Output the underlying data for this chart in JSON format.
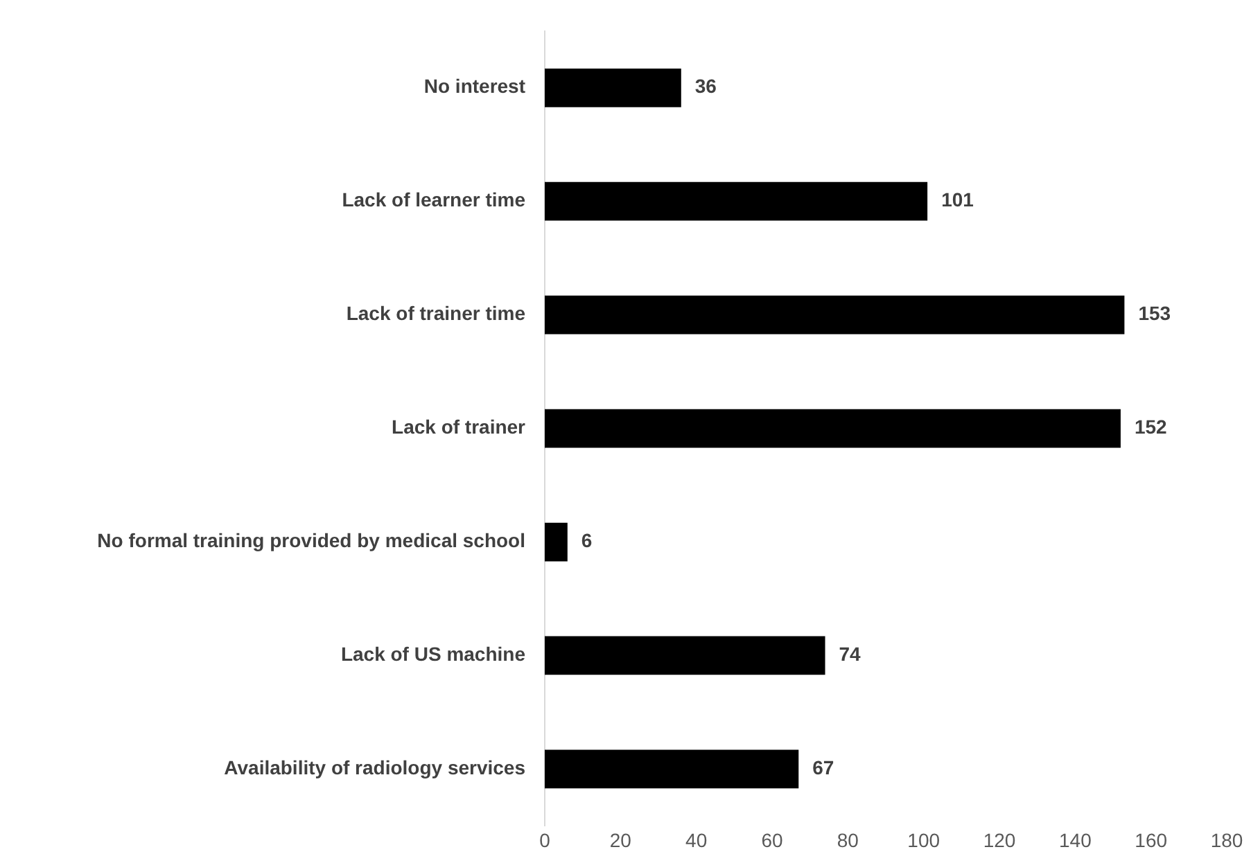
{
  "chart_data": {
    "type": "bar",
    "orientation": "horizontal",
    "categories": [
      "No interest",
      "Lack of learner time",
      "Lack of trainer time",
      "Lack of trainer",
      "No formal training provided by medical school",
      "Lack of US machine",
      "Availability of radiology services"
    ],
    "values": [
      36,
      101,
      153,
      152,
      6,
      74,
      67
    ],
    "color": "#000000",
    "xlim": [
      0,
      180
    ],
    "xticks": [
      0,
      20,
      40,
      60,
      80,
      100,
      120,
      140,
      160,
      180
    ],
    "data_labels": true
  }
}
